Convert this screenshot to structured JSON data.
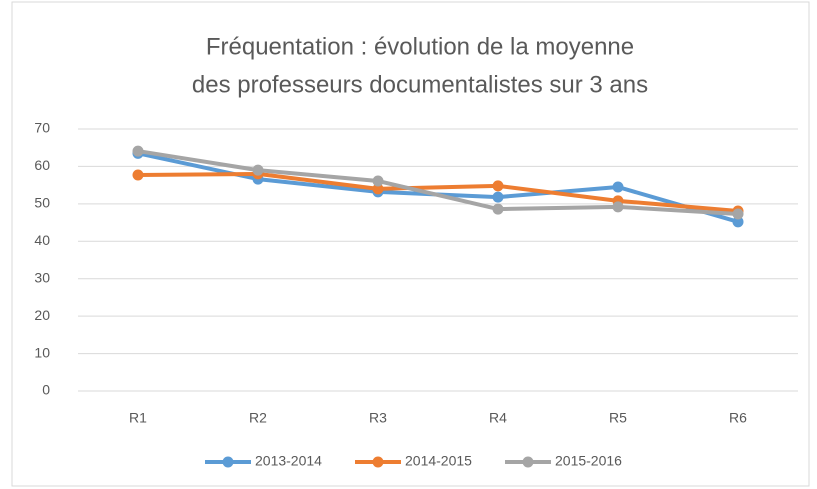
{
  "chart_data": {
    "type": "line",
    "title": [
      "Fréquentation : évolution de la moyenne",
      "des professeurs documentalistes sur 3 ans"
    ],
    "categories": [
      "R1",
      "R2",
      "R3",
      "R4",
      "R5",
      "R6"
    ],
    "series": [
      {
        "name": "2013-2014",
        "color": "#5b9bd5",
        "values": [
          63.5,
          56.6,
          53.2,
          51.8,
          54.5,
          45.2
        ]
      },
      {
        "name": "2014-2015",
        "color": "#ed7d31",
        "values": [
          57.7,
          58,
          54,
          54.8,
          50.8,
          48.1
        ]
      },
      {
        "name": "2015-2016",
        "color": "#a5a5a5",
        "values": [
          64.1,
          59,
          56.1,
          48.6,
          49.2,
          47.3
        ]
      }
    ],
    "ylim": [
      0,
      70
    ],
    "yticks": [
      0,
      10,
      20,
      30,
      40,
      50,
      60,
      70
    ],
    "grid": true,
    "legend": "bottom"
  }
}
